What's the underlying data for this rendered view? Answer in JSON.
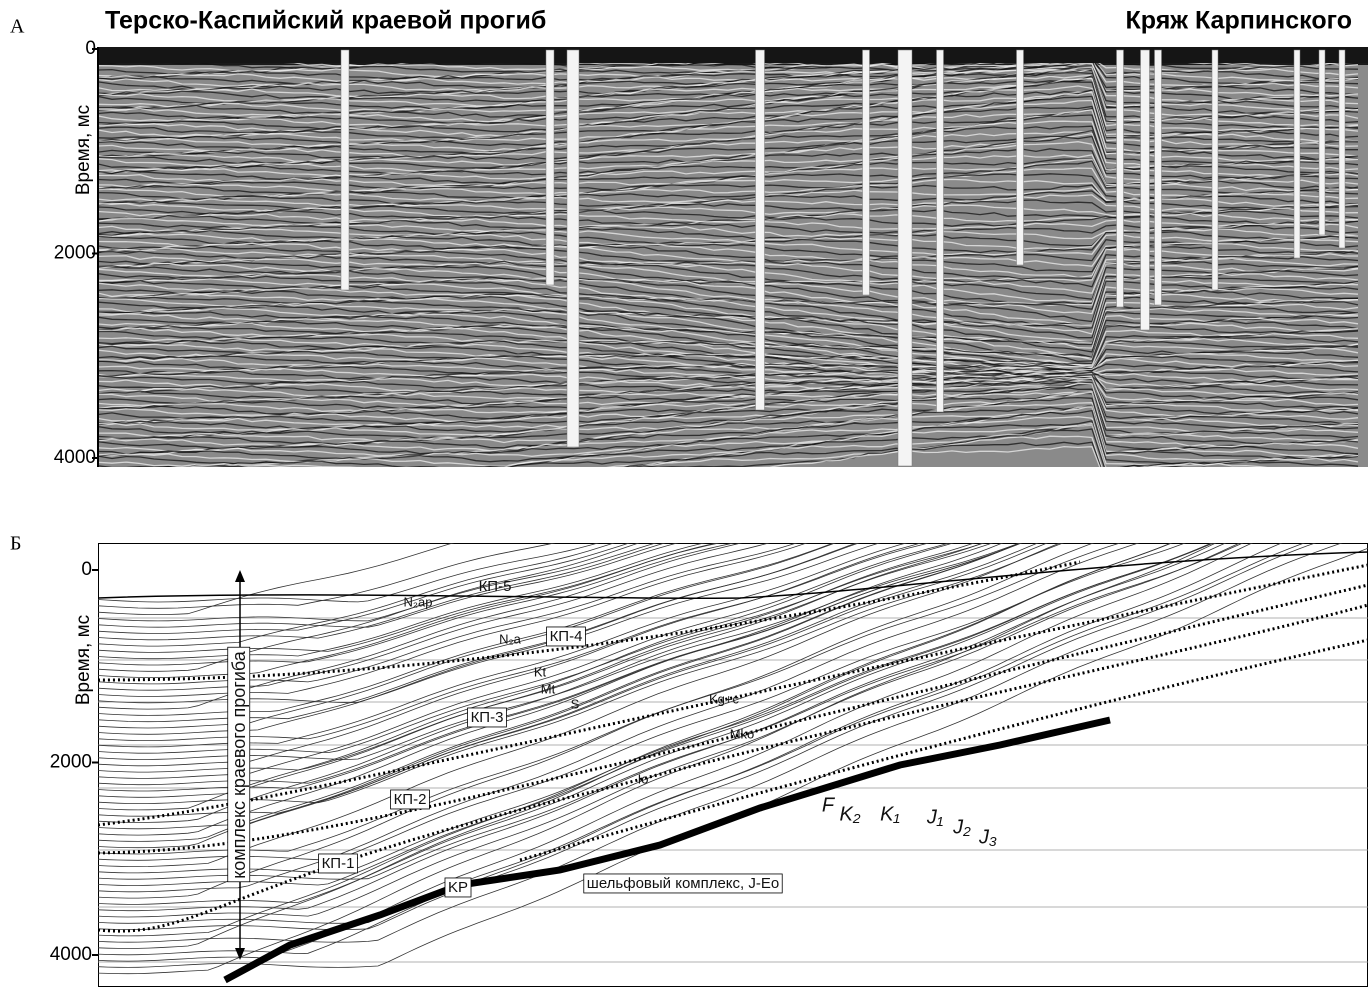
{
  "panels": [
    {
      "label": "А",
      "title_left": "Терско-Каспийский краевой прогиб",
      "title_right": "Кряж Карпинского",
      "axis_label": "Время, мс",
      "yticks": [
        0,
        2000,
        4000
      ]
    },
    {
      "label": "Б",
      "axis_label": "Время, мс",
      "yticks": [
        0,
        2000,
        4000
      ],
      "annotations": [
        "КП-5",
        "N₂ap",
        "КП-4",
        "N₂a",
        "Kt",
        "Mt",
        "S",
        "КП-3",
        "Kg+c",
        "Mko",
        "Io",
        "КП-2",
        "КП-1",
        "KP",
        "шельфовый комплекс, J-Eo",
        "F",
        "K₂",
        "K₁",
        "J₁",
        "J₂",
        "J₃",
        "комплекс краевого прогиба"
      ]
    }
  ]
}
